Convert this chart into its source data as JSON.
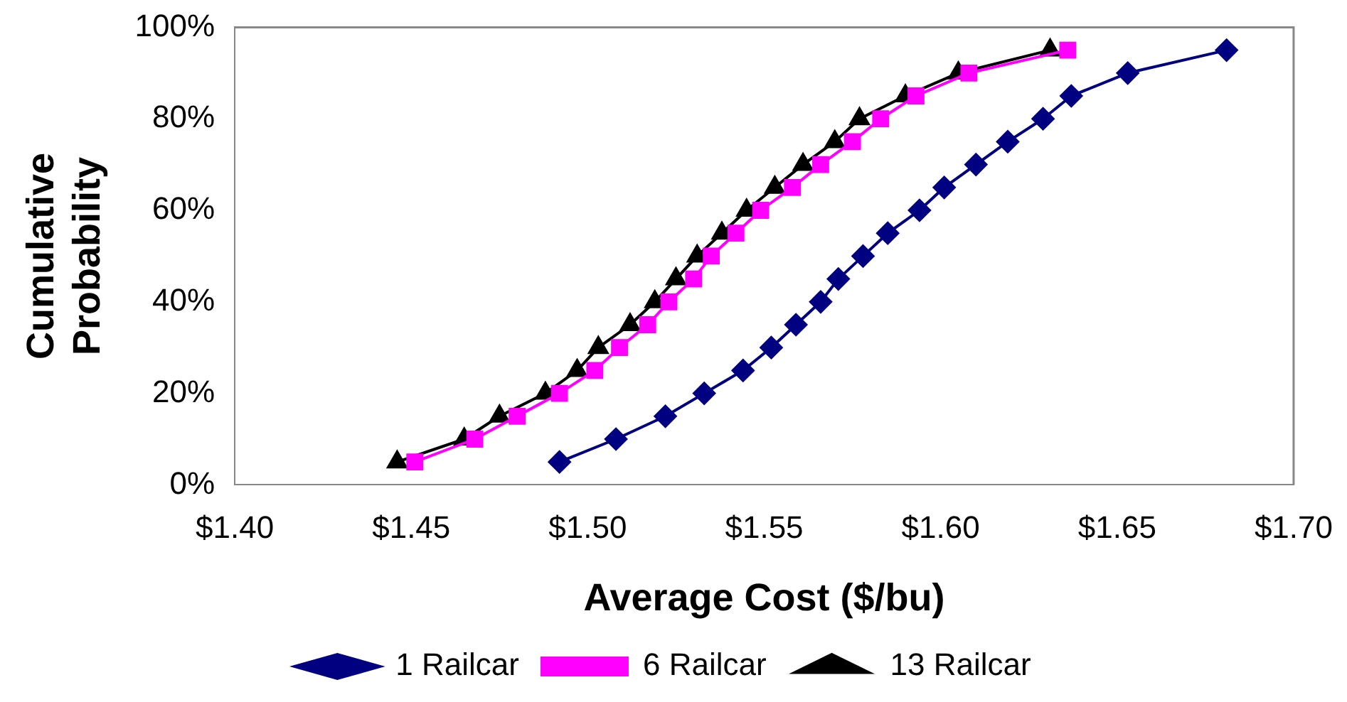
{
  "chart_data": {
    "type": "line",
    "xlabel": "Average Cost ($/bu)",
    "ylabel": "Cumulative Probability",
    "xlim": [
      1.4,
      1.7
    ],
    "xticks": [
      {
        "value": 1.4,
        "label": "$1.40"
      },
      {
        "value": 1.45,
        "label": "$1.45"
      },
      {
        "value": 1.5,
        "label": "$1.50"
      },
      {
        "value": 1.55,
        "label": "$1.55"
      },
      {
        "value": 1.6,
        "label": "$1.60"
      },
      {
        "value": 1.65,
        "label": "$1.65"
      },
      {
        "value": 1.7,
        "label": "$1.70"
      }
    ],
    "ylim": [
      0,
      100
    ],
    "yticks": [
      {
        "value": 0,
        "label": "0%"
      },
      {
        "value": 20,
        "label": "20%"
      },
      {
        "value": 40,
        "label": "40%"
      },
      {
        "value": 60,
        "label": "60%"
      },
      {
        "value": 80,
        "label": "80%"
      },
      {
        "value": 100,
        "label": "100%"
      }
    ],
    "grid": false,
    "legend": "bottom",
    "line_style": "solid",
    "series": [
      {
        "name": "1 Railcar",
        "color": "#000080",
        "marker": "diamond",
        "x": [
          1.492,
          1.508,
          1.522,
          1.533,
          1.544,
          1.552,
          1.559,
          1.566,
          1.571,
          1.578,
          1.585,
          1.594,
          1.601,
          1.61,
          1.619,
          1.629,
          1.637,
          1.653,
          1.681
        ],
        "values": [
          5,
          10,
          15,
          20,
          25,
          30,
          35,
          40,
          45,
          50,
          55,
          60,
          65,
          70,
          75,
          80,
          85,
          90,
          95
        ]
      },
      {
        "name": "6 Railcar",
        "color": "#ff00ff",
        "marker": "square",
        "x": [
          1.451,
          1.468,
          1.48,
          1.492,
          1.502,
          1.509,
          1.517,
          1.523,
          1.53,
          1.535,
          1.542,
          1.549,
          1.558,
          1.566,
          1.575,
          1.583,
          1.593,
          1.608,
          1.636
        ],
        "values": [
          5,
          10,
          15,
          20,
          25,
          30,
          35,
          40,
          45,
          50,
          55,
          60,
          65,
          70,
          75,
          80,
          85,
          90,
          95
        ]
      },
      {
        "name": "13 Railcar",
        "color": "#000000",
        "marker": "triangle",
        "x": [
          1.446,
          1.465,
          1.475,
          1.488,
          1.497,
          1.503,
          1.512,
          1.519,
          1.525,
          1.531,
          1.538,
          1.545,
          1.553,
          1.561,
          1.57,
          1.577,
          1.59,
          1.605,
          1.631
        ],
        "values": [
          5,
          10,
          15,
          20,
          25,
          30,
          35,
          40,
          45,
          50,
          55,
          60,
          65,
          70,
          75,
          80,
          85,
          90,
          95
        ]
      }
    ]
  }
}
